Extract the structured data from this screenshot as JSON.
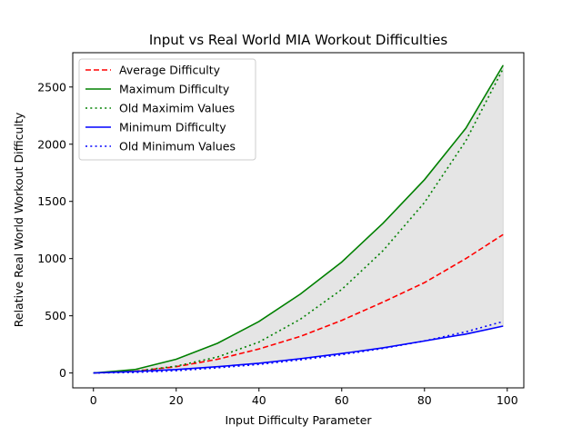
{
  "chart_data": {
    "type": "line",
    "title": "Input vs Real World MIA Workout Difficulties",
    "xlabel": "Input Difficulty Parameter",
    "ylabel": "Relative Real World Workout Difficulty",
    "xlim": [
      -5,
      104
    ],
    "ylim": [
      -130,
      2800
    ],
    "xticks": [
      0,
      20,
      40,
      60,
      80,
      100
    ],
    "yticks": [
      0,
      500,
      1000,
      1500,
      2000,
      2500
    ],
    "grid": false,
    "legend_position": "top-left",
    "fill_between": {
      "upper": "Maximum Difficulty",
      "lower": "Minimum Difficulty",
      "color": "#e5e5e5"
    },
    "x": [
      0,
      10,
      20,
      30,
      40,
      50,
      60,
      70,
      80,
      90,
      99
    ],
    "series": [
      {
        "name": "Average Difficulty",
        "color": "#ff0000",
        "style": "dashed",
        "values": [
          0,
          15,
          55,
          120,
          210,
          320,
          460,
          620,
          790,
          1000,
          1210
        ]
      },
      {
        "name": "Maximum Difficulty",
        "color": "#008000",
        "style": "solid",
        "values": [
          0,
          30,
          120,
          260,
          450,
          690,
          970,
          1310,
          1690,
          2140,
          2690
        ]
      },
      {
        "name": "Old Maximim Values",
        "color": "#008000",
        "style": "dotted",
        "values": [
          0,
          15,
          60,
          140,
          270,
          470,
          730,
          1070,
          1490,
          2030,
          2660
        ]
      },
      {
        "name": "Minimum Difficulty",
        "color": "#0000ff",
        "style": "solid",
        "values": [
          0,
          13,
          30,
          55,
          85,
          125,
          170,
          220,
          280,
          340,
          410
        ]
      },
      {
        "name": "Old Minimum Values",
        "color": "#0000ff",
        "style": "dotted",
        "values": [
          0,
          5,
          20,
          45,
          75,
          115,
          160,
          215,
          280,
          360,
          450
        ]
      }
    ]
  }
}
